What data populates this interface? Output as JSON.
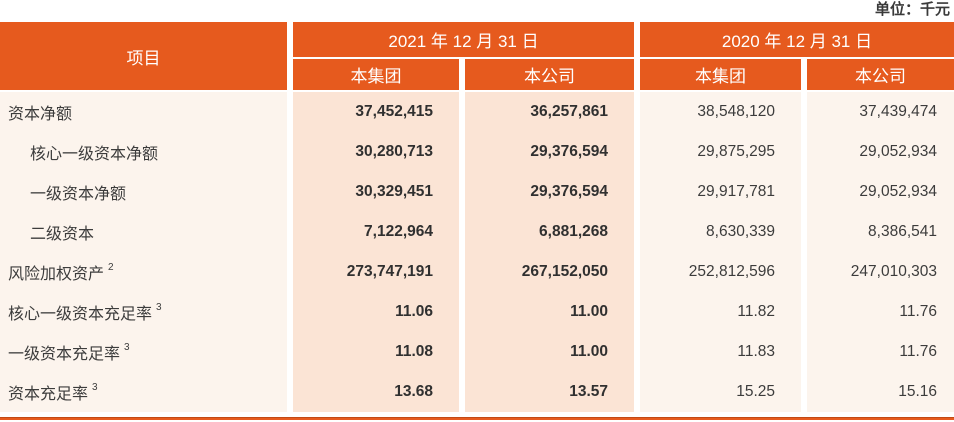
{
  "unit_label": "单位：千元",
  "table": {
    "item_header": "项目",
    "col_groups": [
      {
        "label": "2021 年 12 月 31 日",
        "sub": [
          "本集团",
          "本公司"
        ]
      },
      {
        "label": "2020 年 12 月 31 日",
        "sub": [
          "本集团",
          "本公司"
        ]
      }
    ],
    "rows": [
      {
        "label": "资本净额",
        "indent": false,
        "sup": "",
        "values": [
          "37,452,415",
          "36,257,861",
          "38,548,120",
          "37,439,474"
        ]
      },
      {
        "label": "核心一级资本净额",
        "indent": true,
        "sup": "",
        "values": [
          "30,280,713",
          "29,376,594",
          "29,875,295",
          "29,052,934"
        ]
      },
      {
        "label": "一级资本净额",
        "indent": true,
        "sup": "",
        "values": [
          "30,329,451",
          "29,376,594",
          "29,917,781",
          "29,052,934"
        ]
      },
      {
        "label": "二级资本",
        "indent": true,
        "sup": "",
        "values": [
          "7,122,964",
          "6,881,268",
          "8,630,339",
          "8,386,541"
        ]
      },
      {
        "label": "风险加权资产",
        "indent": false,
        "sup": "2",
        "values": [
          "273,747,191",
          "267,152,050",
          "252,812,596",
          "247,010,303"
        ]
      },
      {
        "label": "核心一级资本充足率",
        "indent": false,
        "sup": "3",
        "values": [
          "11.06",
          "11.00",
          "11.82",
          "11.76"
        ]
      },
      {
        "label": "一级资本充足率",
        "indent": false,
        "sup": "3",
        "values": [
          "11.08",
          "11.00",
          "11.83",
          "11.76"
        ]
      },
      {
        "label": "资本充足率",
        "indent": false,
        "sup": "3",
        "values": [
          "13.68",
          "13.57",
          "15.25",
          "15.16"
        ]
      }
    ]
  },
  "colors": {
    "header_orange": "#E65A1E",
    "col_2021_bg": "#FBE4D5",
    "col_2020_bg": "#FCF4ED",
    "text": "#3A3A3A"
  }
}
